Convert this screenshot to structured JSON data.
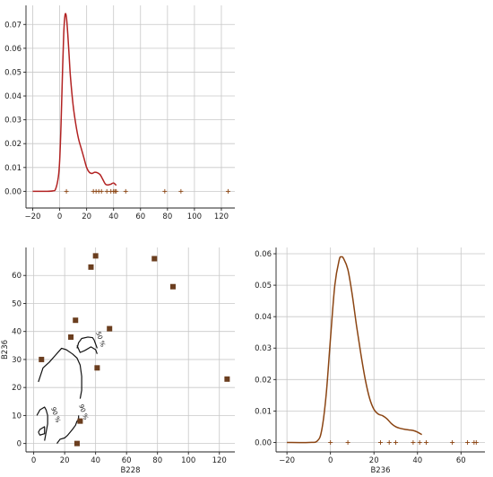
{
  "chart_data": [
    {
      "panel": "top-left",
      "type": "line",
      "subtype": "kde-with-rug",
      "xlabel": "",
      "ylabel": "",
      "xlim": [
        -25,
        130
      ],
      "ylim": [
        -0.007,
        0.078
      ],
      "xticks": [
        -20,
        0,
        20,
        40,
        60,
        80,
        100,
        120
      ],
      "yticks": [
        0.0,
        0.01,
        0.02,
        0.03,
        0.04,
        0.05,
        0.06,
        0.07
      ],
      "ytick_labels": [
        "0.00",
        "0.01",
        "0.02",
        "0.03",
        "0.04",
        "0.05",
        "0.06",
        "0.07"
      ],
      "grid": true,
      "line_color": "#b22222",
      "curve": {
        "x": [
          -20,
          -10,
          -5,
          -3,
          -1,
          0,
          1,
          2,
          3,
          4,
          5,
          6,
          7,
          8,
          10,
          12,
          14,
          16,
          18,
          20,
          22,
          24,
          26,
          28,
          30,
          32,
          34,
          36,
          38,
          40,
          42
        ],
        "y": [
          0,
          0,
          0.0002,
          0.001,
          0.006,
          0.013,
          0.028,
          0.048,
          0.066,
          0.074,
          0.073,
          0.066,
          0.057,
          0.048,
          0.036,
          0.028,
          0.022,
          0.018,
          0.014,
          0.01,
          0.008,
          0.0075,
          0.008,
          0.0078,
          0.007,
          0.005,
          0.003,
          0.0027,
          0.003,
          0.0035,
          0.0025
        ]
      },
      "rug": [
        5,
        25,
        27,
        29,
        31,
        35,
        38,
        40,
        41,
        42,
        49,
        78,
        90,
        125
      ]
    },
    {
      "panel": "bottom-left",
      "type": "scatter",
      "subtype": "scatter-with-contours",
      "xlabel": "B228",
      "ylabel": "B236",
      "xlim": [
        -5,
        130
      ],
      "ylim": [
        -3,
        70
      ],
      "xticks": [
        0,
        20,
        40,
        60,
        80,
        100,
        120
      ],
      "yticks": [
        0,
        10,
        20,
        30,
        40,
        50,
        60
      ],
      "grid": true,
      "marker_color": "#6b3e1f",
      "points": {
        "x": [
          5,
          24,
          27,
          28,
          30,
          37,
          40,
          41,
          49,
          78,
          90,
          125
        ],
        "y": [
          30,
          38,
          44,
          0,
          8,
          63,
          67,
          27,
          41,
          66,
          56,
          23
        ]
      },
      "contours": [
        {
          "label": "50 %",
          "label_x": 42,
          "label_y": 37,
          "x": [
            3,
            6,
            10,
            14,
            18,
            21,
            25,
            28,
            30,
            31,
            31,
            30
          ],
          "y": [
            22,
            27,
            29,
            31.5,
            34,
            33.5,
            32,
            30.5,
            28,
            24,
            19,
            16
          ]
        },
        {
          "label": "",
          "label_x": 0,
          "label_y": 0,
          "x": [
            28,
            29,
            31,
            35,
            38,
            39,
            41
          ],
          "y": [
            34,
            36,
            37.5,
            38,
            37.8,
            37,
            34
          ]
        },
        {
          "label": "",
          "label_x": 0,
          "label_y": 0,
          "x": [
            28,
            30,
            33,
            37,
            40,
            41
          ],
          "y": [
            35,
            32.5,
            33.2,
            34.5,
            33.5,
            32
          ]
        },
        {
          "label": "90 %",
          "label_x": 13,
          "label_y": 10,
          "x": [
            2,
            4,
            7,
            8,
            9,
            9,
            8,
            7
          ],
          "y": [
            10,
            12,
            13,
            12,
            10,
            7,
            4,
            1
          ]
        },
        {
          "label": "",
          "label_x": 0,
          "label_y": 0,
          "x": [
            3,
            4,
            7,
            7,
            4,
            3
          ],
          "y": [
            4,
            5,
            6,
            3.5,
            3,
            4
          ]
        },
        {
          "label": "90 %",
          "label_x": 31,
          "label_y": 11,
          "x": [
            15,
            17,
            20,
            22,
            25,
            27,
            28,
            29,
            29
          ],
          "y": [
            0,
            1.5,
            2,
            3,
            5,
            6.5,
            8,
            8.5,
            10
          ]
        }
      ]
    },
    {
      "panel": "bottom-right",
      "type": "line",
      "subtype": "kde-with-rug",
      "xlabel": "B236",
      "ylabel": "",
      "xlim": [
        -25,
        71
      ],
      "ylim": [
        -0.003,
        0.062
      ],
      "xticks": [
        -20,
        0,
        20,
        40,
        60
      ],
      "yticks": [
        0.0,
        0.01,
        0.02,
        0.03,
        0.04,
        0.05,
        0.06
      ],
      "ytick_labels": [
        "0.00",
        "0.01",
        "0.02",
        "0.03",
        "0.04",
        "0.05",
        "0.06"
      ],
      "grid": true,
      "line_color": "#8b4513",
      "curve": {
        "x": [
          -20,
          -10,
          -6,
          -4,
          -2,
          0,
          2,
          4,
          5,
          6,
          8,
          10,
          12,
          14,
          16,
          18,
          20,
          22,
          24,
          26,
          28,
          30,
          32,
          34,
          36,
          38,
          40,
          42
        ],
        "y": [
          0,
          0,
          0.0005,
          0.004,
          0.015,
          0.033,
          0.05,
          0.058,
          0.059,
          0.0585,
          0.055,
          0.047,
          0.037,
          0.028,
          0.02,
          0.014,
          0.0105,
          0.009,
          0.0085,
          0.0075,
          0.006,
          0.005,
          0.0045,
          0.0042,
          0.004,
          0.0038,
          0.0033,
          0.0025
        ]
      },
      "rug": [
        0,
        8,
        23,
        27,
        30,
        38,
        41,
        44,
        56,
        63,
        66,
        67
      ]
    }
  ]
}
